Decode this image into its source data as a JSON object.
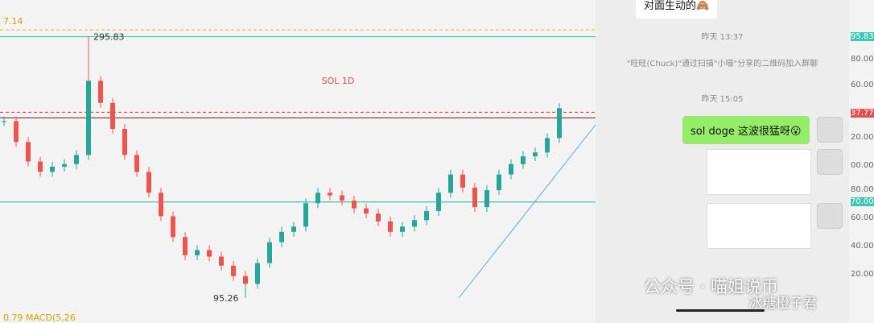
{
  "chart": {
    "title": "SOL 1D",
    "top_label": "7.14",
    "indicator_label": "0.79  MACD(5,26",
    "ylim": [
      76,
      324
    ],
    "closes": [
      231,
      215,
      200,
      192,
      196,
      198,
      205,
      262,
      245,
      225,
      205,
      192,
      176,
      158,
      142,
      128,
      132,
      127,
      120,
      112,
      106,
      122,
      138,
      146,
      150,
      168,
      176,
      174,
      170,
      164,
      160,
      154,
      146,
      150,
      155,
      162,
      176,
      190,
      180,
      165,
      178,
      190,
      198,
      204,
      207,
      218,
      241
    ],
    "high": {
      "value": 295.83,
      "label": "295.83"
    },
    "low": {
      "value": 95.26,
      "label": "95.26"
    },
    "levels": [
      {
        "value": 301.14,
        "color": "#e8c14a",
        "dash": true
      },
      {
        "value": 295.83,
        "color": "#3cc6b4",
        "dash": false
      },
      {
        "value": 237.77,
        "color": "#e05050",
        "dash": true
      },
      {
        "value": 233.5,
        "color": "#8a2a2a",
        "dash": false
      },
      {
        "value": 168.9,
        "color": "#3cc6b4",
        "dash": false
      }
    ]
  },
  "axis_labels": [
    "95.83",
    "80.00",
    "60.00",
    "37.77",
    "20.00",
    "00.00",
    "80.00",
    "70.00",
    "60.00",
    "40.00",
    "20.00"
  ],
  "chat": {
    "messages": [
      "对面生动的🙈",
      "sol doge 这波很猛呀😮"
    ],
    "times": [
      "昨天 13:37",
      "昨天 15:05"
    ],
    "system": "\"旺旺(Chuck)\"通过扫描\"小喵\"分享的二维码加入群聊"
  },
  "watermark": [
    "公众号 · 喵姐说币",
    "冰糖橙子君"
  ]
}
